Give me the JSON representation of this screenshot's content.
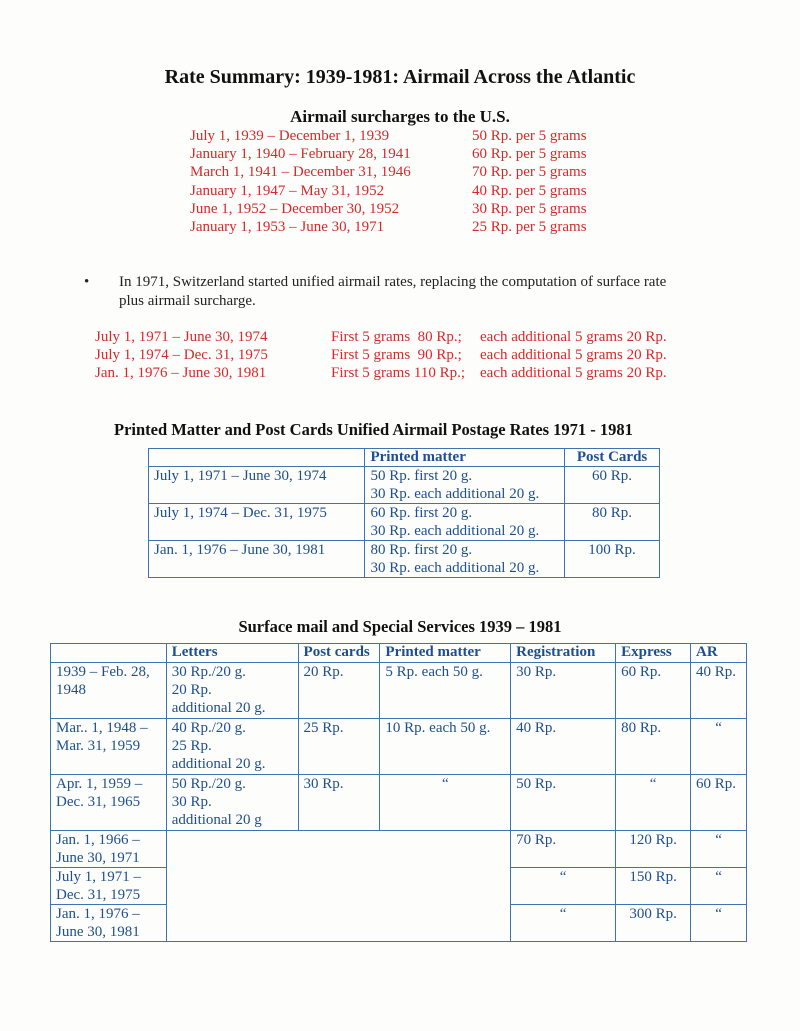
{
  "title": "Rate Summary: 1939-1981: Airmail Across the Atlantic",
  "surcharges": {
    "heading": "Airmail surcharges to the U.S.",
    "rows": [
      {
        "period": "July 1, 1939 – December 1, 1939",
        "rate": "50 Rp. per 5 grams"
      },
      {
        "period": "January 1, 1940 – February 28, 1941",
        "rate": "60 Rp. per 5 grams"
      },
      {
        "period": "March 1, 1941 – December 31, 1946",
        "rate": "70 Rp. per 5 grams"
      },
      {
        "period": "January 1, 1947 – May 31, 1952",
        "rate": "40 Rp. per 5 grams"
      },
      {
        "period": "June 1, 1952 – December 30, 1952",
        "rate": "30 Rp. per 5 grams"
      },
      {
        "period": "January 1, 1953 – June 30, 1971",
        "rate": "25 Rp. per 5 grams"
      }
    ]
  },
  "bullet": {
    "line1": "In 1971, Switzerland started unified airmail rates, replacing the computation of surface rate",
    "line2": "plus airmail surcharge."
  },
  "unified": [
    {
      "period": "July 1, 1971 – June 30, 1974",
      "first": "First 5 grams  80 Rp.;",
      "additional": "each additional 5 grams 20 Rp."
    },
    {
      "period": "July 1, 1974 – Dec. 31, 1975",
      "first": "First 5 grams  90 Rp.;",
      "additional": "each additional 5 grams 20 Rp."
    },
    {
      "period": "Jan. 1, 1976 – June 30, 1981",
      "first": "First 5 grams 110 Rp.;",
      "additional": "each additional 5 grams 20 Rp."
    }
  ],
  "printed_table": {
    "heading": "Printed Matter and Post Cards Unified Airmail Postage Rates 1971 - 1981",
    "headers": [
      "",
      "Printed matter",
      "Post Cards"
    ],
    "rows": [
      {
        "period": "July 1, 1971 – June 30, 1974",
        "pm1": "50 Rp. first 20 g.",
        "pm2": "30 Rp. each additional 20 g.",
        "pc": "60 Rp."
      },
      {
        "period": "July 1, 1974 – Dec. 31, 1975",
        "pm1": "60 Rp. first 20 g.",
        "pm2": "30 Rp. each additional 20 g.",
        "pc": "80 Rp."
      },
      {
        "period": "Jan. 1, 1976 – June 30, 1981",
        "pm1": "80 Rp. first 20 g.",
        "pm2": "30 Rp. each additional 20 g.",
        "pc": "100 Rp."
      }
    ]
  },
  "surface_table": {
    "heading": "Surface mail and Special Services 1939 – 1981",
    "headers": [
      "",
      "Letters",
      "Post cards",
      "Printed matter",
      "Registration",
      "Express",
      "AR"
    ],
    "rows": [
      {
        "p1": "1939 – Feb. 28,",
        "p2": "1948",
        "l1": "30 Rp./20 g.",
        "l2": "20 Rp.",
        "l3": "additional 20 g.",
        "pc": "20 Rp.",
        "pm": "5 Rp. each 50 g.",
        "reg": "30 Rp.",
        "exp": "60 Rp.",
        "ar": "40 Rp."
      },
      {
        "p1": "Mar.. 1, 1948 –",
        "p2": "Mar. 31, 1959",
        "l1": "40 Rp./20 g.",
        "l2": "25 Rp.",
        "l3": "additional 20 g.",
        "pc": "25 Rp.",
        "pm": "10 Rp. each 50 g.",
        "reg": "40 Rp.",
        "exp": "80 Rp.",
        "ar": "“"
      },
      {
        "p1": "Apr. 1, 1959 –",
        "p2": "Dec. 31, 1965",
        "l1": "50 Rp./20 g.",
        "l2": "30 Rp.",
        "l3": "additional 20 g",
        "pc": "30 Rp.",
        "pm": "“",
        "reg": "50 Rp.",
        "exp": "“",
        "ar": "60 Rp."
      },
      {
        "p1": "Jan. 1, 1966 –",
        "p2": "June 30, 1971",
        "reg": "70 Rp.",
        "exp": "120 Rp.",
        "ar": "“"
      },
      {
        "p1": "July 1, 1971 –",
        "p2": "Dec. 31, 1975",
        "reg": "“",
        "exp": "150 Rp.",
        "ar": "“"
      },
      {
        "p1": "Jan. 1, 1976 –",
        "p2": "June 30, 1981",
        "reg": "“",
        "exp": "300 Rp.",
        "ar": "“"
      }
    ]
  },
  "colors": {
    "red": "#d42a2a",
    "blue": "#1d4f8f"
  }
}
